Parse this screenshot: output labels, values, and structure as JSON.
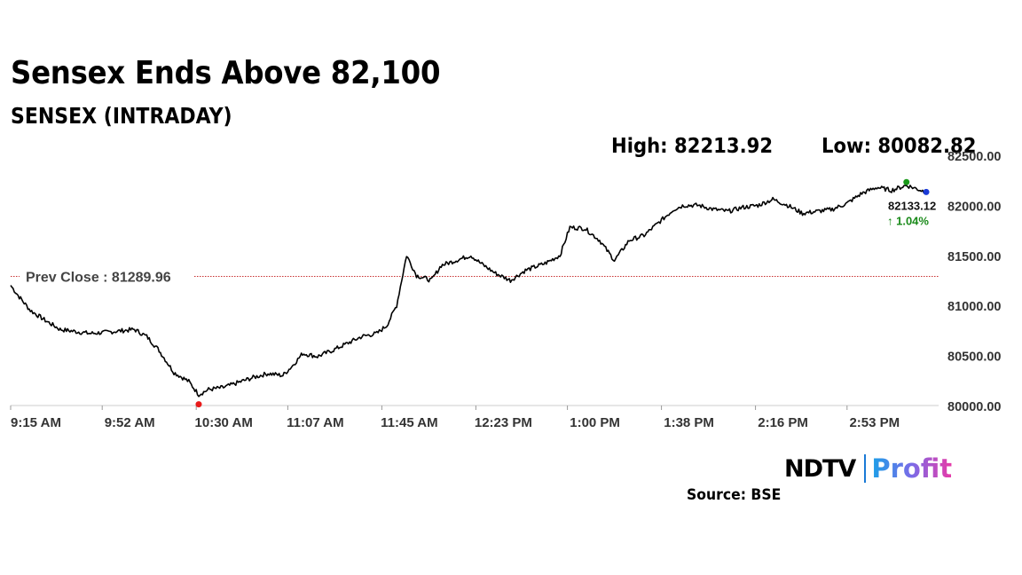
{
  "header": {
    "title": "Sensex Ends Above 82,100",
    "subtitle": "SENSEX (INTRADAY)",
    "high_text": "High: 82213.92",
    "low_text": "Low: 80082.82"
  },
  "chart_data": {
    "type": "line",
    "title": "SENSEX (INTRADAY)",
    "xlabel": "",
    "ylabel": "",
    "ylim": [
      80000,
      82500
    ],
    "y_ticks": [
      80000,
      80500,
      81000,
      81500,
      82000,
      82500
    ],
    "y_tick_labels": [
      "80000.00",
      "80500.00",
      "81000.00",
      "81500.00",
      "82000.00",
      "82500.00"
    ],
    "x_tick_labels": [
      "9:15 AM",
      "9:52 AM",
      "10:30 AM",
      "11:07 AM",
      "11:45 AM",
      "12:23 PM",
      "1:00 PM",
      "1:38 PM",
      "2:16 PM",
      "2:53 PM"
    ],
    "x_tick_minutes": [
      0,
      37,
      75,
      112,
      150,
      188,
      225,
      263,
      301,
      338
    ],
    "x_range_minutes": [
      0,
      375
    ],
    "series": [
      {
        "name": "SENSEX",
        "color": "#000000",
        "points": [
          [
            0,
            81200
          ],
          [
            3,
            81100
          ],
          [
            8,
            80950
          ],
          [
            14,
            80850
          ],
          [
            20,
            80760
          ],
          [
            26,
            80740
          ],
          [
            32,
            80720
          ],
          [
            38,
            80730
          ],
          [
            44,
            80745
          ],
          [
            50,
            80760
          ],
          [
            55,
            80690
          ],
          [
            60,
            80550
          ],
          [
            66,
            80330
          ],
          [
            72,
            80240
          ],
          [
            76,
            80110
          ],
          [
            80,
            80160
          ],
          [
            86,
            80180
          ],
          [
            92,
            80230
          ],
          [
            98,
            80280
          ],
          [
            104,
            80320
          ],
          [
            110,
            80300
          ],
          [
            114,
            80400
          ],
          [
            118,
            80520
          ],
          [
            124,
            80490
          ],
          [
            130,
            80550
          ],
          [
            136,
            80620
          ],
          [
            142,
            80690
          ],
          [
            148,
            80720
          ],
          [
            152,
            80800
          ],
          [
            156,
            81000
          ],
          [
            160,
            81500
          ],
          [
            164,
            81300
          ],
          [
            170,
            81250
          ],
          [
            174,
            81400
          ],
          [
            180,
            81450
          ],
          [
            186,
            81500
          ],
          [
            190,
            81420
          ],
          [
            196,
            81320
          ],
          [
            202,
            81250
          ],
          [
            208,
            81350
          ],
          [
            216,
            81420
          ],
          [
            222,
            81500
          ],
          [
            226,
            81780
          ],
          [
            232,
            81770
          ],
          [
            238,
            81650
          ],
          [
            244,
            81450
          ],
          [
            250,
            81650
          ],
          [
            256,
            81700
          ],
          [
            262,
            81830
          ],
          [
            268,
            81960
          ],
          [
            272,
            82000
          ],
          [
            278,
            82000
          ],
          [
            284,
            81960
          ],
          [
            290,
            81940
          ],
          [
            296,
            81980
          ],
          [
            302,
            82000
          ],
          [
            308,
            82060
          ],
          [
            314,
            82000
          ],
          [
            320,
            81920
          ],
          [
            326,
            81940
          ],
          [
            332,
            81960
          ],
          [
            338,
            82020
          ],
          [
            344,
            82120
          ],
          [
            350,
            82180
          ],
          [
            356,
            82150
          ],
          [
            362,
            82200
          ],
          [
            370,
            82133
          ]
        ]
      }
    ],
    "prev_close": 81289.96,
    "prev_close_label": "Prev Close : 81289.96",
    "high_point": [
      362,
      82213.92
    ],
    "low_point": [
      76,
      80082.82
    ],
    "last_value_label": "82133.12",
    "change_label": "↑ 1.04%",
    "colors": {
      "line": "#000000",
      "prev_close": "#c83232",
      "low_marker": "#e81a1a",
      "high_marker": "#1a9a1a",
      "last_marker": "#1a3ad6",
      "change": "#1a8a1a",
      "axis": "#cccccc"
    }
  },
  "footer": {
    "brand_ndtv": "NDTV",
    "brand_profit": "Profit",
    "source": "Source: BSE"
  }
}
